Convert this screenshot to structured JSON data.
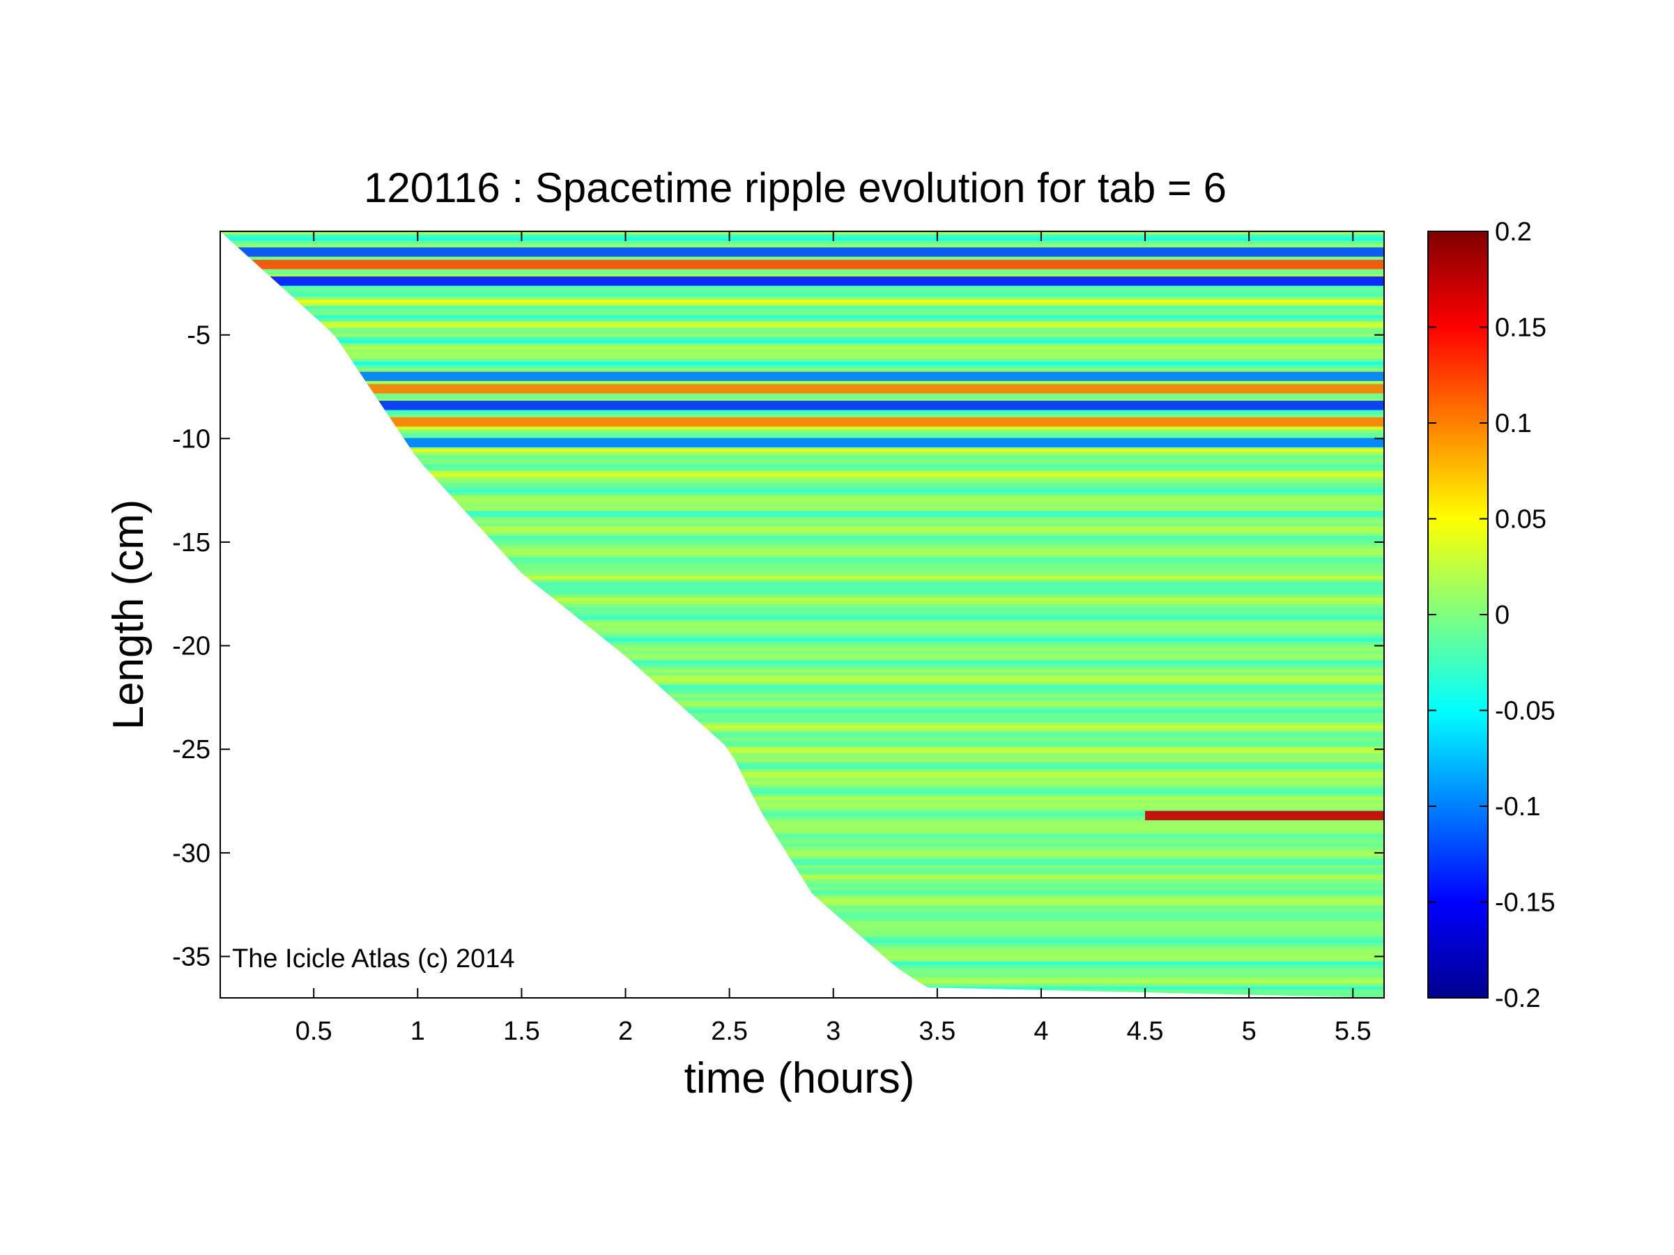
{
  "chart_data": {
    "type": "heatmap",
    "title": "120116 : Spacetime ripple evolution for tab = 6",
    "xlabel": "time (hours)",
    "ylabel": "Length (cm)",
    "xlim": [
      0.05,
      5.65
    ],
    "ylim": [
      -37,
      0
    ],
    "x_ticks": [
      0.5,
      1,
      1.5,
      2,
      2.5,
      3,
      3.5,
      4,
      4.5,
      5,
      5.5
    ],
    "x_tick_labels": [
      "0.5",
      "1",
      "1.5",
      "2",
      "2.5",
      "3",
      "3.5",
      "4",
      "4.5",
      "5",
      "5.5"
    ],
    "y_ticks": [
      -5,
      -10,
      -15,
      -20,
      -25,
      -30,
      -35
    ],
    "y_tick_labels": [
      "-5",
      "-10",
      "-15",
      "-20",
      "-25",
      "-30",
      "-35"
    ],
    "colorbar": {
      "colormap": "jet",
      "range": [
        -0.2,
        0.2
      ],
      "ticks": [
        0.2,
        0.15,
        0.1,
        0.05,
        0,
        -0.05,
        -0.1,
        -0.15,
        -0.2
      ],
      "tick_labels": [
        "0.2",
        "0.15",
        "0.1",
        "0.05",
        "0",
        "-0.05",
        "-0.1",
        "-0.15",
        "-0.2"
      ]
    },
    "data_region": {
      "description_boundary": "icicle tip grows over time; no data below tip",
      "tip_length_vs_time": [
        [
          0.05,
          0
        ],
        [
          0.6,
          -5
        ],
        [
          1.0,
          -11
        ],
        [
          1.5,
          -16.5
        ],
        [
          2.0,
          -20.5
        ],
        [
          2.5,
          -25
        ],
        [
          2.65,
          -28
        ],
        [
          2.9,
          -32
        ],
        [
          3.3,
          -35.5
        ],
        [
          3.45,
          -36.5
        ],
        [
          5.65,
          -37
        ]
      ]
    },
    "notable_bands": [
      {
        "length": -1.0,
        "value": -0.12
      },
      {
        "length": -1.6,
        "value": 0.12
      },
      {
        "length": -2.4,
        "value": -0.14
      },
      {
        "length": -7.0,
        "value": -0.1
      },
      {
        "length": -7.6,
        "value": 0.1
      },
      {
        "length": -8.4,
        "value": -0.13
      },
      {
        "length": -9.2,
        "value": 0.1
      },
      {
        "length": -10.2,
        "value": -0.1
      },
      {
        "length": -28.2,
        "value": 0.17,
        "x_start": 4.5
      }
    ],
    "annotation": "The Icicle Atlas (c) 2014"
  }
}
